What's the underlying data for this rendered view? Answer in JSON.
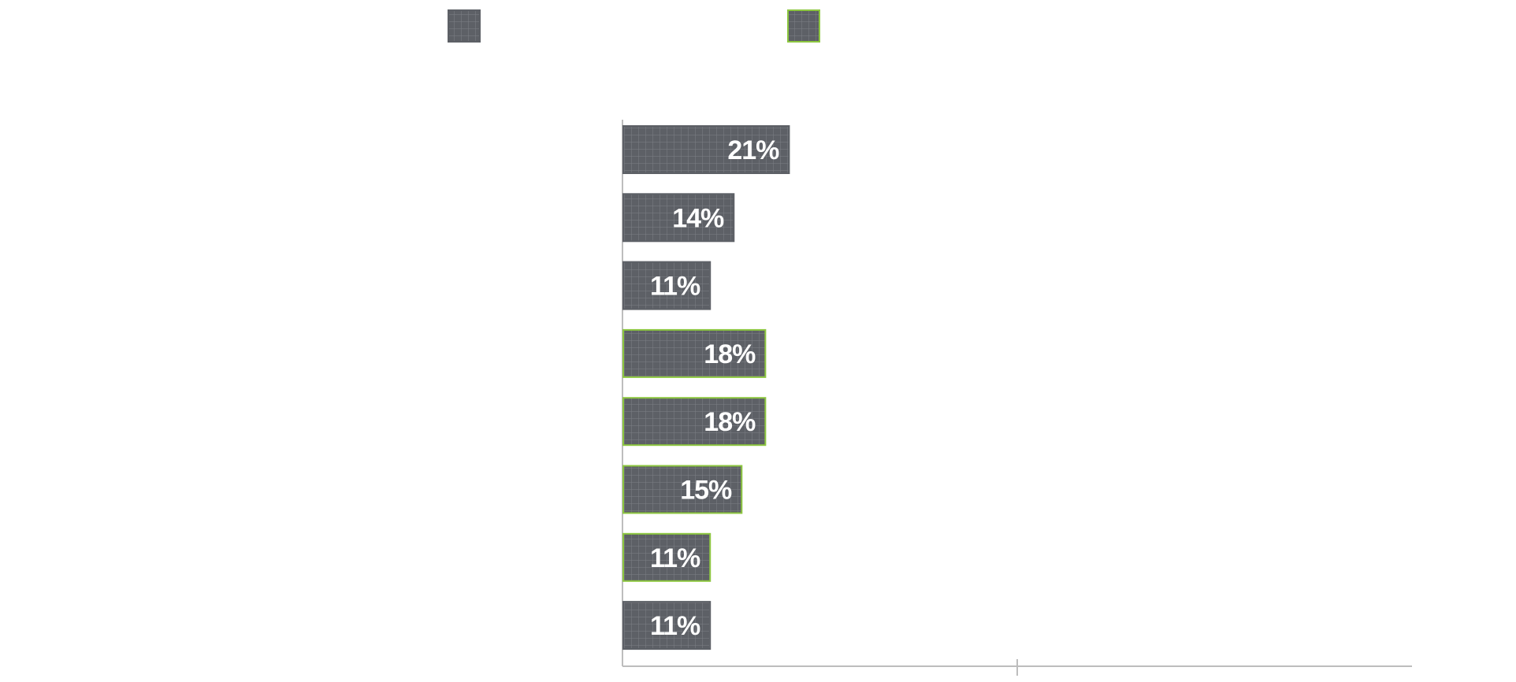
{
  "chart_data": {
    "type": "bar",
    "orientation": "horizontal",
    "title": "",
    "xlabel": "",
    "ylabel": "",
    "xlim": [
      0,
      100
    ],
    "grid": false,
    "legend_position": "top",
    "series": [
      {
        "name": "",
        "color": "#5d6066",
        "border_color": "#5d6066"
      },
      {
        "name": "",
        "color": "#5d6066",
        "border_color": "#8cc63f"
      }
    ],
    "bars": [
      {
        "series": 0,
        "value": 21,
        "label": "21%"
      },
      {
        "series": 0,
        "value": 14,
        "label": "14%"
      },
      {
        "series": 0,
        "value": 11,
        "label": "11%"
      },
      {
        "series": 1,
        "value": 18,
        "label": "18%"
      },
      {
        "series": 1,
        "value": 18,
        "label": "18%"
      },
      {
        "series": 1,
        "value": 15,
        "label": "15%"
      },
      {
        "series": 1,
        "value": 11,
        "label": "11%"
      },
      {
        "series": 0,
        "value": 11,
        "label": "11%"
      }
    ]
  }
}
